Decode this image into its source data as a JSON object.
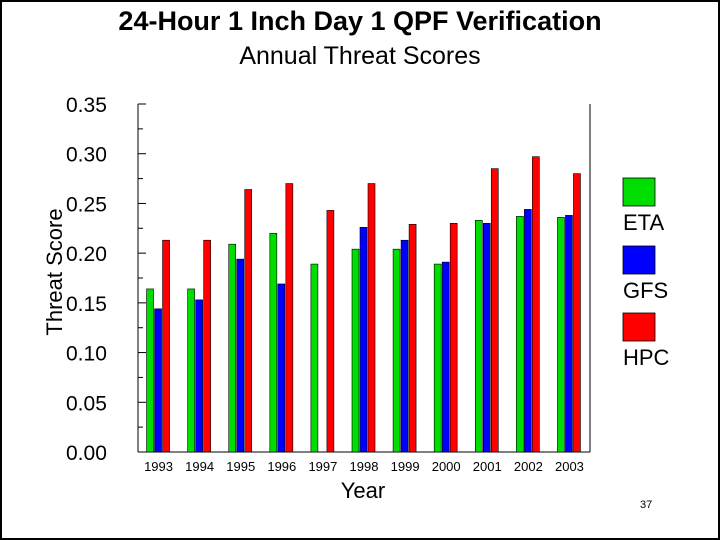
{
  "page_number": "37",
  "colors": {
    "ETA": "#00dd00",
    "GFS": "#0000ff",
    "HPC": "#ff0000"
  },
  "chart_data": {
    "type": "bar",
    "title": "24-Hour 1 Inch Day 1 QPF Verification",
    "subtitle": "Annual Threat Scores",
    "xlabel": "Year",
    "ylabel": "Threat Score",
    "ylim": [
      0,
      0.35
    ],
    "yticks": [
      "0.00",
      "0.05",
      "0.10",
      "0.15",
      "0.20",
      "0.25",
      "0.30",
      "0.35"
    ],
    "grid": false,
    "legend_position": "right",
    "categories": [
      "1993",
      "1994",
      "1995",
      "1996",
      "1997",
      "1998",
      "1999",
      "2000",
      "2001",
      "2002",
      "2003"
    ],
    "series": [
      {
        "name": "ETA",
        "values": [
          0.164,
          0.164,
          0.209,
          0.22,
          0.189,
          0.204,
          0.204,
          0.189,
          0.233,
          0.237,
          0.236
        ]
      },
      {
        "name": "GFS",
        "values": [
          0.144,
          0.153,
          0.194,
          0.169,
          null,
          0.226,
          0.213,
          0.191,
          0.23,
          0.244,
          0.238
        ]
      },
      {
        "name": "HPC",
        "values": [
          0.213,
          0.213,
          0.264,
          0.27,
          0.243,
          0.27,
          0.229,
          0.23,
          0.285,
          0.297,
          0.28
        ]
      }
    ]
  }
}
